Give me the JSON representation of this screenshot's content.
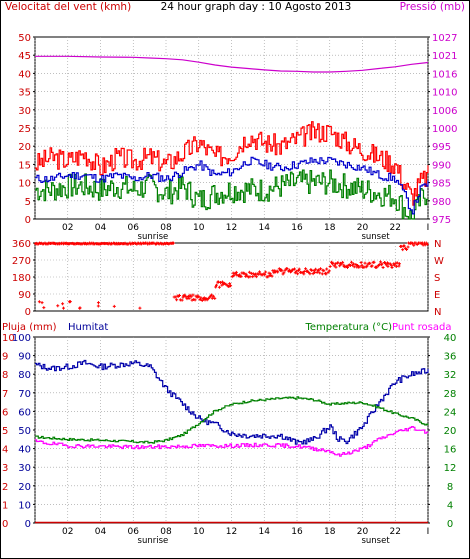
{
  "header": {
    "title": "24 hour graph day : 10 Agosto 2013",
    "left_label": "Velocitat del vent (kmh)",
    "right_label": "Pressió (mb)"
  },
  "colors": {
    "wind_gust": "#ff0000",
    "wind_avg": "#0000cc",
    "wind_low": "#008000",
    "pressure": "#cc00cc",
    "direction": "#ff0000",
    "humidity": "#0000aa",
    "temperature": "#008000",
    "dewpoint": "#ff00ff",
    "rain": "#cc0000",
    "axis_red": "#cc0000",
    "axis_magenta": "#cc00cc",
    "axis_blue": "#000099",
    "axis_green": "#008000"
  },
  "x_axis": {
    "hour_ticks": [
      "02",
      "04",
      "06",
      "08",
      "10",
      "12",
      "14",
      "16",
      "18",
      "20",
      "22",
      "I"
    ],
    "sunrise_label": "sunrise",
    "sunset_label": "sunset",
    "sunrise_hour": 7.2,
    "sunset_hour": 20.8
  },
  "panel3_labels": {
    "rain": "Pluja (mm)",
    "humidity": "Humitat",
    "temperature": "Temperatura (°C)",
    "dewpoint": "Punt rosada"
  },
  "chart_data": [
    {
      "type": "line",
      "panel": "wind-pressure",
      "left_axis": {
        "ticks": [
          "0",
          "5",
          "10",
          "15",
          "20",
          "25",
          "30",
          "35",
          "40",
          "45",
          "50"
        ],
        "ylim": [
          0,
          50
        ]
      },
      "right_axis": {
        "ticks": [
          "975",
          "980",
          "985",
          "990",
          "995",
          "1000",
          "1006",
          "1010",
          "1016",
          "1021",
          "1027"
        ],
        "ylim": [
          975,
          1027
        ]
      },
      "series": [
        {
          "key": "gust",
          "x": [
            0,
            1,
            2,
            3,
            4,
            5,
            6,
            7,
            8,
            9,
            10,
            11,
            12,
            13,
            14,
            15,
            16,
            17,
            18,
            19,
            20,
            21,
            22,
            22.5,
            23,
            23.5,
            24
          ],
          "values": [
            15,
            17,
            16,
            18,
            14,
            17,
            16,
            17,
            15,
            18,
            21,
            17,
            18,
            23,
            21,
            20,
            22,
            24,
            24,
            21,
            19,
            17,
            15,
            10,
            6,
            10,
            12
          ]
        },
        {
          "key": "average",
          "x": [
            0,
            1,
            2,
            3,
            4,
            5,
            6,
            7,
            8,
            9,
            10,
            11,
            12,
            13,
            14,
            15,
            16,
            17,
            18,
            19,
            20,
            21,
            22,
            22.5,
            23,
            23.5,
            24
          ],
          "values": [
            11,
            11,
            12,
            12,
            11,
            12,
            11,
            12,
            11,
            13,
            15,
            12,
            13,
            16,
            15,
            14,
            15,
            16,
            16,
            15,
            14,
            12,
            11,
            7,
            2,
            8,
            10
          ]
        },
        {
          "key": "low",
          "x": [
            0,
            1,
            2,
            3,
            4,
            5,
            6,
            7,
            8,
            9,
            10,
            11,
            12,
            13,
            14,
            15,
            16,
            17,
            18,
            19,
            20,
            21,
            22,
            22.5,
            23,
            23.5,
            24
          ],
          "values": [
            8,
            8,
            9,
            9,
            8,
            9,
            8,
            9,
            7,
            9,
            5,
            7,
            8,
            8,
            8,
            9,
            10,
            10,
            10,
            9,
            8,
            7,
            6,
            3,
            0,
            5,
            8
          ]
        },
        {
          "key": "pressure",
          "x": [
            0,
            2,
            4,
            6,
            7,
            8,
            9,
            10,
            11,
            12,
            13,
            14,
            15,
            16,
            17,
            18,
            19,
            20,
            21,
            22,
            23,
            24
          ],
          "values": [
            1021.5,
            1021.5,
            1021.3,
            1021.2,
            1021.0,
            1020.8,
            1020.5,
            1019.8,
            1019.0,
            1018.4,
            1018.0,
            1017.6,
            1017.3,
            1017.2,
            1017.0,
            1017.0,
            1017.2,
            1017.5,
            1018.0,
            1018.5,
            1019.2,
            1019.7
          ]
        }
      ]
    },
    {
      "type": "scatter",
      "panel": "wind-direction",
      "axis": {
        "ticks": [
          "0",
          "90",
          "180",
          "270",
          "360"
        ],
        "compass": [
          "N",
          "E",
          "S",
          "W",
          "N"
        ],
        "ylim": [
          0,
          360
        ]
      },
      "segments": [
        {
          "x0": 0,
          "x1": 8.5,
          "base": 360
        },
        {
          "x0": 8.5,
          "x1": 11,
          "base": 70
        },
        {
          "x0": 11,
          "x1": 12,
          "base": 140
        },
        {
          "x0": 12,
          "x1": 14.5,
          "base": 195
        },
        {
          "x0": 14.5,
          "x1": 18,
          "base": 210
        },
        {
          "x0": 18,
          "x1": 22.3,
          "base": 245
        },
        {
          "x0": 22.3,
          "x1": 22.8,
          "base": 330
        },
        {
          "x0": 22.8,
          "x1": 24,
          "base": 360
        }
      ]
    },
    {
      "type": "line",
      "panel": "temp-humidity-rain",
      "left_axis": {
        "rain_ticks": [
          "0",
          "1",
          "2",
          "3",
          "4",
          "5",
          "6",
          "7",
          "8",
          "9",
          "10"
        ],
        "humidity_ticks": [
          "0",
          "10",
          "20",
          "30",
          "40",
          "50",
          "60",
          "70",
          "80",
          "90",
          "100"
        ],
        "ylim": [
          0,
          100
        ]
      },
      "right_axis": {
        "ticks": [
          "0",
          "4",
          "8",
          "12",
          "16",
          "20",
          "24",
          "28",
          "32",
          "36",
          "40"
        ],
        "ylim": [
          0,
          40
        ]
      },
      "series": [
        {
          "key": "humidity",
          "x": [
            0,
            1,
            2,
            3,
            4,
            5,
            6,
            7,
            8,
            9,
            10,
            11,
            12,
            13,
            14,
            15,
            16,
            17,
            18,
            18.5,
            19,
            20,
            21,
            22,
            23,
            24
          ],
          "values": [
            85,
            83,
            84,
            86,
            84,
            85,
            86,
            84,
            72,
            64,
            56,
            53,
            48,
            47,
            47,
            47,
            43,
            45,
            52,
            45,
            44,
            52,
            65,
            76,
            80,
            82
          ]
        },
        {
          "key": "temperature",
          "x": [
            0,
            2,
            4,
            6,
            7,
            8,
            9,
            10,
            11,
            12,
            13,
            14,
            15,
            16,
            17,
            18,
            19,
            20,
            21,
            22,
            23,
            24
          ],
          "values": [
            18.5,
            18,
            17.8,
            17.5,
            17.3,
            17.8,
            19,
            21.5,
            24.2,
            25.5,
            26.2,
            26.5,
            26.8,
            26.9,
            26.5,
            25.5,
            25.8,
            25.9,
            24.8,
            23.5,
            22.5,
            21
          ]
        },
        {
          "key": "dewpoint",
          "x": [
            0,
            2,
            4,
            6,
            8,
            10,
            12,
            14,
            16,
            18,
            18.5,
            19,
            20,
            21,
            22,
            23,
            24
          ],
          "values": [
            17.5,
            16.6,
            16.5,
            16.3,
            16.4,
            16.6,
            16.6,
            16.8,
            16.5,
            15.5,
            14.5,
            15,
            16,
            18,
            19.5,
            20.5,
            19.5
          ]
        },
        {
          "key": "rain",
          "x": [
            0,
            24
          ],
          "values": [
            0,
            0
          ]
        }
      ]
    }
  ]
}
